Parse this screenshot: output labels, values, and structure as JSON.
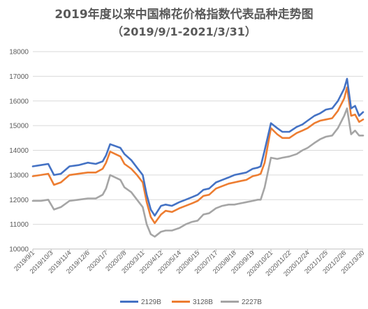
{
  "chart_data": {
    "type": "line",
    "title": "2019年度以来中国棉花价格指数代表品种走势图",
    "subtitle": "（2019/9/1-2021/3/31）",
    "xlabel": "",
    "ylabel": "",
    "ylim": [
      10000,
      18000
    ],
    "yticks": [
      "10000",
      "11000",
      "12000",
      "13000",
      "14000",
      "15000",
      "16000",
      "17000",
      "18000"
    ],
    "xticks": [
      "2019/9/1",
      "2019/10/3",
      "2019/11/4",
      "2019/12/6",
      "2020/1/7",
      "2020/2/8",
      "2020/3/11",
      "2020/4/12",
      "2020/5/14",
      "2020/6/15",
      "2020/7/17",
      "2020/8/18",
      "2020/9/19",
      "2020/10/21",
      "2020/11/22",
      "2020/12/24",
      "2021/1/25",
      "2021/2/26",
      "2021/3/30"
    ],
    "grid": true,
    "legend_position": "bottom",
    "x_domain": [
      "2019/9/1",
      "2021/3/31"
    ],
    "x": [
      "2019/9/1",
      "2019/9/15",
      "2019/9/28",
      "2019/10/8",
      "2019/10/20",
      "2019/11/4",
      "2019/11/20",
      "2019/12/6",
      "2019/12/20",
      "2020/1/1",
      "2020/1/7",
      "2020/1/14",
      "2020/2/1",
      "2020/2/8",
      "2020/2/20",
      "2020/3/1",
      "2020/3/11",
      "2020/3/18",
      "2020/3/25",
      "2020/4/1",
      "2020/4/12",
      "2020/4/20",
      "2020/5/1",
      "2020/5/14",
      "2020/5/25",
      "2020/6/5",
      "2020/6/15",
      "2020/6/25",
      "2020/7/5",
      "2020/7/17",
      "2020/7/28",
      "2020/8/8",
      "2020/8/18",
      "2020/8/28",
      "2020/9/8",
      "2020/9/19",
      "2020/9/28",
      "2020/10/3",
      "2020/10/10",
      "2020/10/21",
      "2020/11/1",
      "2020/11/10",
      "2020/11/22",
      "2020/12/5",
      "2020/12/15",
      "2020/12/24",
      "2021/1/5",
      "2021/1/15",
      "2021/1/25",
      "2021/2/5",
      "2021/2/15",
      "2021/2/26",
      "2021/3/3",
      "2021/3/10",
      "2021/3/17",
      "2021/3/24",
      "2021/3/31"
    ],
    "series": [
      {
        "name": "2129B",
        "color": "#4472C4",
        "values": [
          13350,
          13400,
          13450,
          13000,
          13050,
          13350,
          13400,
          13500,
          13450,
          13550,
          13800,
          14250,
          14100,
          13850,
          13600,
          13300,
          13000,
          12200,
          11600,
          11350,
          11750,
          11800,
          11750,
          11900,
          12000,
          12100,
          12200,
          12400,
          12450,
          12700,
          12800,
          12900,
          13000,
          13050,
          13100,
          13250,
          13300,
          13350,
          14000,
          15100,
          14900,
          14750,
          14750,
          14950,
          15050,
          15200,
          15400,
          15500,
          15650,
          15700,
          16000,
          16500,
          16900,
          15700,
          15800,
          15400,
          15550
        ]
      },
      {
        "name": "3128B",
        "color": "#ED7D31",
        "values": [
          12950,
          13000,
          13050,
          12600,
          12700,
          13000,
          13050,
          13100,
          13100,
          13250,
          13500,
          13950,
          13750,
          13450,
          13250,
          13000,
          12700,
          11900,
          11300,
          11050,
          11400,
          11550,
          11500,
          11650,
          11750,
          11850,
          11950,
          12150,
          12200,
          12450,
          12550,
          12650,
          12700,
          12750,
          12800,
          12950,
          13000,
          13050,
          13500,
          14900,
          14650,
          14500,
          14500,
          14700,
          14800,
          14900,
          15100,
          15200,
          15250,
          15300,
          15600,
          16100,
          16550,
          15400,
          15450,
          15150,
          15250
        ]
      },
      {
        "name": "2227B",
        "color": "#A5A5A5",
        "values": [
          11950,
          11950,
          12000,
          11600,
          11700,
          11950,
          12000,
          12050,
          12050,
          12200,
          12450,
          13000,
          12800,
          12500,
          12300,
          12000,
          11700,
          11000,
          10600,
          10500,
          10700,
          10750,
          10750,
          10850,
          11000,
          11100,
          11150,
          11400,
          11450,
          11650,
          11750,
          11800,
          11800,
          11850,
          11900,
          11950,
          12000,
          12000,
          12500,
          13700,
          13650,
          13700,
          13750,
          13850,
          14000,
          14100,
          14300,
          14450,
          14550,
          14600,
          14900,
          15400,
          15700,
          14650,
          14800,
          14600,
          14600
        ]
      }
    ]
  }
}
